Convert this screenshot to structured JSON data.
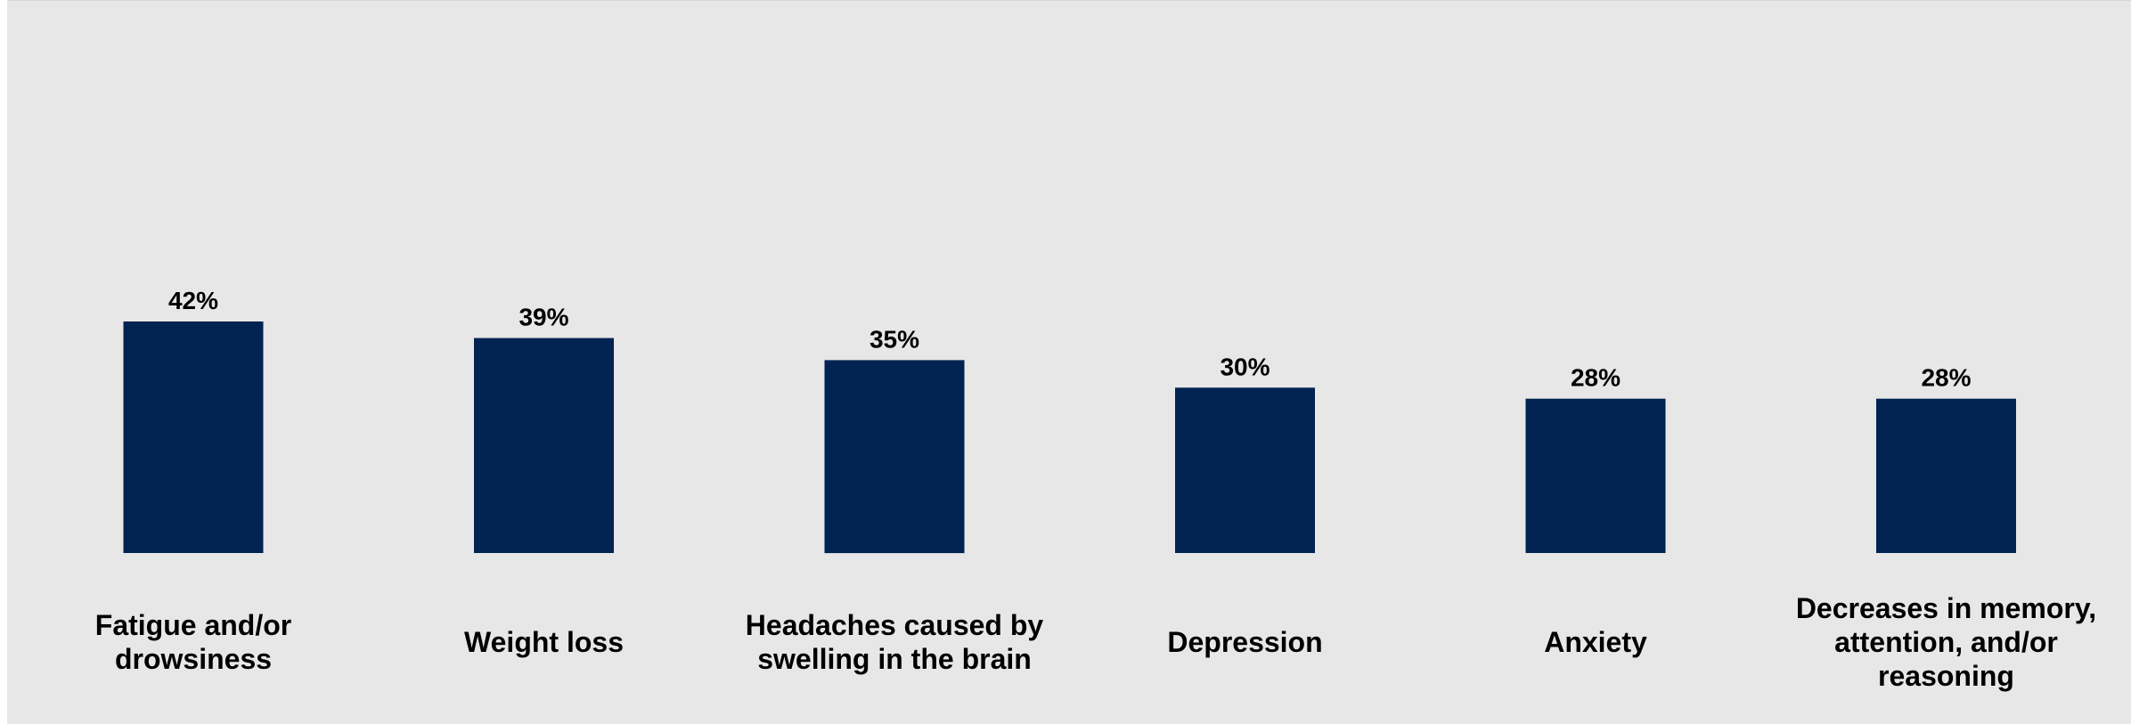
{
  "chart_data": {
    "type": "bar",
    "categories": [
      [
        "Fatigue and/or",
        "drowsiness"
      ],
      [
        "Weight loss"
      ],
      [
        "Headaches caused by",
        "swelling in the brain"
      ],
      [
        "Depression"
      ],
      [
        "Anxiety"
      ],
      [
        "Decreases in memory,",
        "attention, and/or",
        "reasoning"
      ]
    ],
    "values": [
      42,
      39,
      35,
      30,
      28,
      28
    ],
    "value_labels": [
      "42%",
      "39%",
      "35%",
      "30%",
      "28%",
      "28%"
    ],
    "ylim": [
      0,
      100
    ],
    "grid": false,
    "legend": "none",
    "colors": {
      "bar": "#002352",
      "background": "#e7e7e7",
      "text": "#000000"
    }
  }
}
